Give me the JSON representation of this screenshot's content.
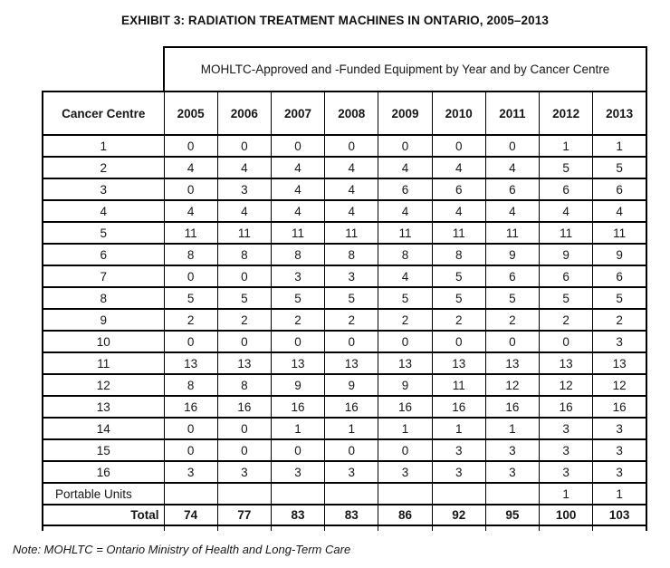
{
  "title": "EXHIBIT 3: RADIATION TREATMENT MACHINES IN ONTARIO, 2005–2013",
  "table": {
    "span_header": "MOHLTC-Approved and -Funded Equipment by Year and by Cancer Centre",
    "columns": [
      "Cancer Centre",
      "2005",
      "2006",
      "2007",
      "2008",
      "2009",
      "2010",
      "2011",
      "2012",
      "2013"
    ],
    "rows": [
      {
        "label": "1",
        "values": [
          "0",
          "0",
          "0",
          "0",
          "0",
          "0",
          "0",
          "1",
          "1"
        ]
      },
      {
        "label": "2",
        "values": [
          "4",
          "4",
          "4",
          "4",
          "4",
          "4",
          "4",
          "5",
          "5"
        ]
      },
      {
        "label": "3",
        "values": [
          "0",
          "3",
          "4",
          "4",
          "6",
          "6",
          "6",
          "6",
          "6"
        ]
      },
      {
        "label": "4",
        "values": [
          "4",
          "4",
          "4",
          "4",
          "4",
          "4",
          "4",
          "4",
          "4"
        ]
      },
      {
        "label": "5",
        "values": [
          "11",
          "11",
          "11",
          "11",
          "11",
          "11",
          "11",
          "11",
          "11"
        ]
      },
      {
        "label": "6",
        "values": [
          "8",
          "8",
          "8",
          "8",
          "8",
          "8",
          "9",
          "9",
          "9"
        ]
      },
      {
        "label": "7",
        "values": [
          "0",
          "0",
          "3",
          "3",
          "4",
          "5",
          "6",
          "6",
          "6"
        ]
      },
      {
        "label": "8",
        "values": [
          "5",
          "5",
          "5",
          "5",
          "5",
          "5",
          "5",
          "5",
          "5"
        ]
      },
      {
        "label": "9",
        "values": [
          "2",
          "2",
          "2",
          "2",
          "2",
          "2",
          "2",
          "2",
          "2"
        ]
      },
      {
        "label": "10",
        "values": [
          "0",
          "0",
          "0",
          "0",
          "0",
          "0",
          "0",
          "0",
          "3"
        ]
      },
      {
        "label": "11",
        "values": [
          "13",
          "13",
          "13",
          "13",
          "13",
          "13",
          "13",
          "13",
          "13"
        ]
      },
      {
        "label": "12",
        "values": [
          "8",
          "8",
          "9",
          "9",
          "9",
          "11",
          "12",
          "12",
          "12"
        ]
      },
      {
        "label": "13",
        "values": [
          "16",
          "16",
          "16",
          "16",
          "16",
          "16",
          "16",
          "16",
          "16"
        ]
      },
      {
        "label": "14",
        "values": [
          "0",
          "0",
          "1",
          "1",
          "1",
          "1",
          "1",
          "3",
          "3"
        ]
      },
      {
        "label": "15",
        "values": [
          "0",
          "0",
          "0",
          "0",
          "0",
          "3",
          "3",
          "3",
          "3"
        ]
      },
      {
        "label": "16",
        "values": [
          "3",
          "3",
          "3",
          "3",
          "3",
          "3",
          "3",
          "3",
          "3"
        ]
      }
    ],
    "portable_row": {
      "label": "Portable Units",
      "values": [
        "",
        "",
        "",
        "",
        "",
        "",
        "",
        "1",
        "1"
      ]
    },
    "total_row": {
      "label": "Total",
      "values": [
        "74",
        "77",
        "83",
        "83",
        "86",
        "92",
        "95",
        "100",
        "103"
      ]
    }
  },
  "note": "Note: MOHLTC = Ontario Ministry of Health and Long-Term Care",
  "colors": {
    "border": "#000000",
    "text": "#161616",
    "background": "#ffffff"
  }
}
